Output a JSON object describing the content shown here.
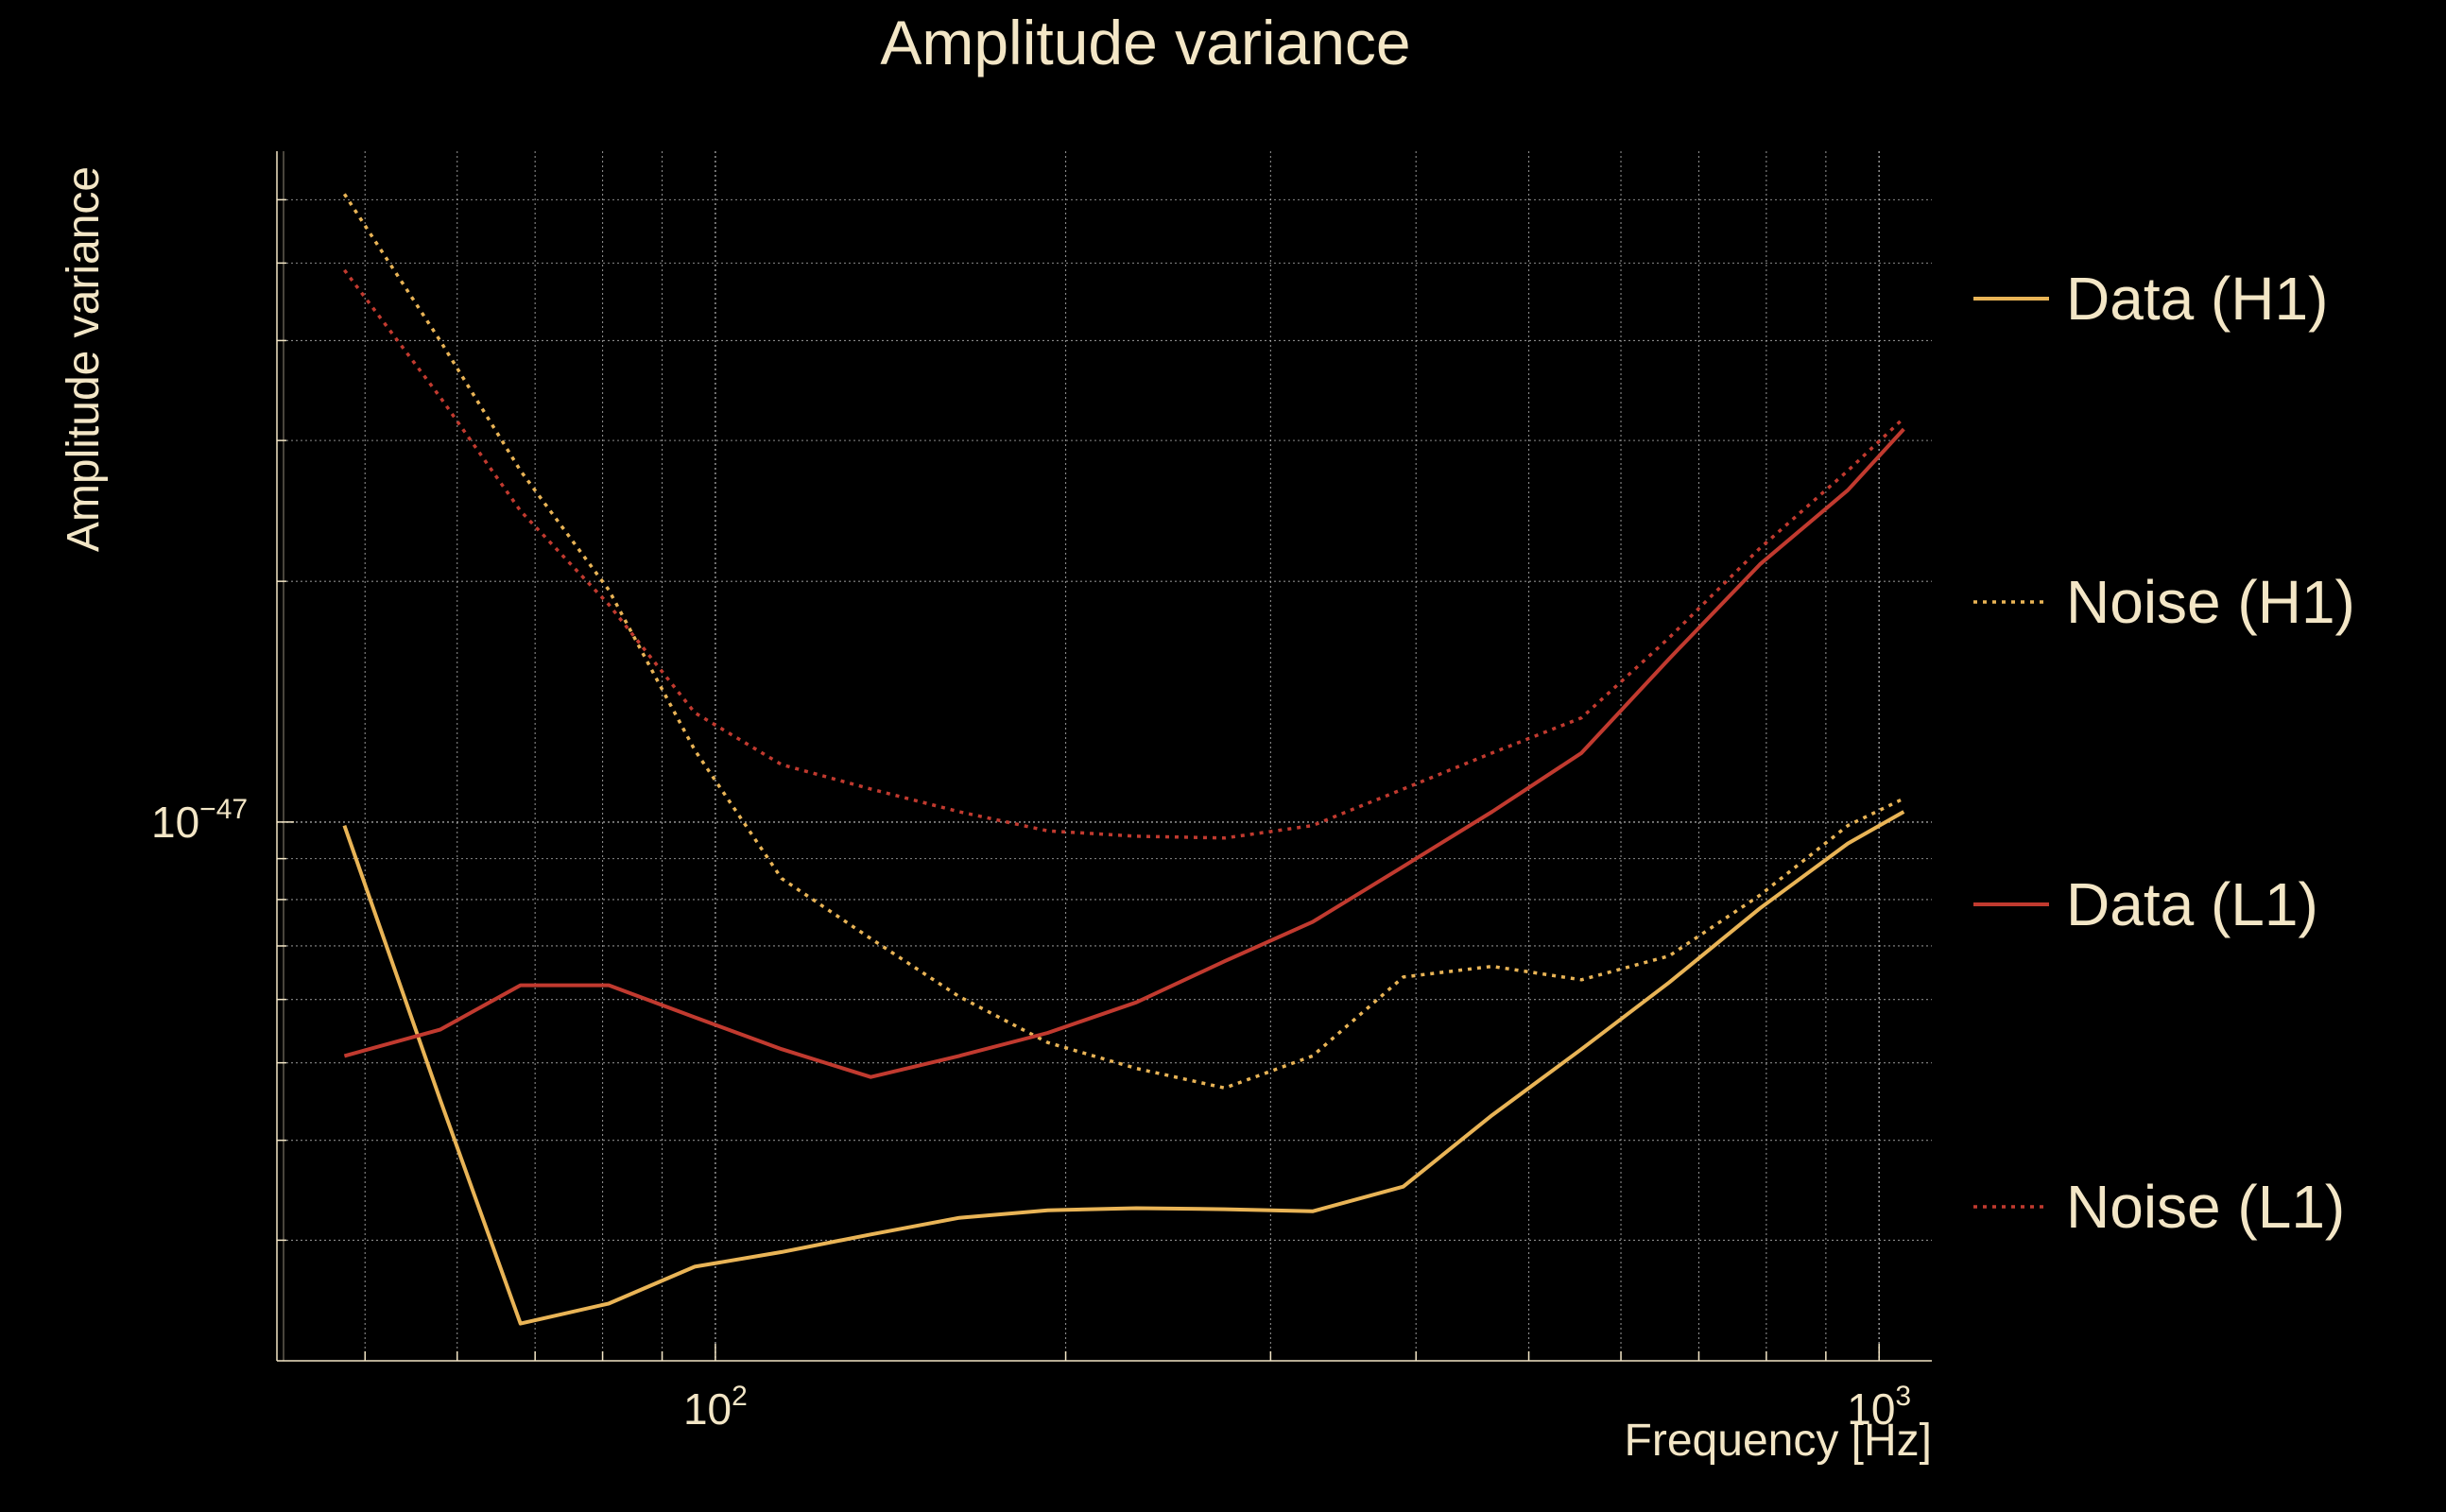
{
  "chart_data": {
    "type": "line",
    "title": "Amplitude variance",
    "xlabel": "Frequency [Hz]",
    "ylabel": "Amplitude variance",
    "xscale": "log",
    "yscale": "log",
    "xlim": [
      42,
      1110
    ],
    "ylim": [
      2.12e-48,
      6.9e-47
    ],
    "xticks": [
      {
        "value": 100,
        "base": "10",
        "exp": "2"
      },
      {
        "value": 1000,
        "base": "10",
        "exp": "3"
      }
    ],
    "yticks": [
      {
        "value": 1e-47,
        "base": "10",
        "exp": "−47"
      }
    ],
    "grid": true,
    "legend_position": "right",
    "background": "#000000",
    "text_color": "#f3e6c6",
    "grid_color": "#b8b8b8",
    "series": [
      {
        "name": "Data (H1)",
        "color": "#e9b456",
        "dash": "solid",
        "x": [
          48,
          58,
          68,
          81,
          96,
          114,
          136,
          162,
          193,
          230,
          274,
          326,
          390,
          465,
          555,
          660,
          790,
          940,
          1050
        ],
        "y": [
          9.9e-48,
          4.5e-48,
          2.36e-48,
          2.5e-48,
          2.78e-48,
          2.9e-48,
          3.05e-48,
          3.2e-48,
          3.27e-48,
          3.29e-48,
          3.28e-48,
          3.26e-48,
          3.5e-48,
          4.3e-48,
          5.2e-48,
          6.3e-48,
          7.8e-48,
          9.4e-48,
          1.03e-47
        ]
      },
      {
        "name": "Noise (H1)",
        "color": "#e9b456",
        "dash": "dotted",
        "x": [
          48,
          58,
          68,
          81,
          96,
          114,
          136,
          162,
          193,
          230,
          274,
          326,
          390,
          465,
          555,
          660,
          790,
          940,
          1050
        ],
        "y": [
          6.1e-47,
          4e-47,
          2.75e-47,
          1.95e-47,
          1.23e-47,
          8.5e-48,
          7.15e-48,
          6.05e-48,
          5.3e-48,
          4.92e-48,
          4.65e-48,
          5.1e-48,
          6.4e-48,
          6.6e-48,
          6.35e-48,
          6.8e-48,
          8.1e-48,
          9.9e-48,
          1.07e-47
        ]
      },
      {
        "name": "Data (L1)",
        "color": "#c13a2f",
        "dash": "solid",
        "x": [
          48,
          58,
          68,
          81,
          96,
          114,
          136,
          162,
          193,
          230,
          274,
          326,
          390,
          465,
          555,
          660,
          790,
          940,
          1050
        ],
        "y": [
          5.1e-48,
          5.5e-48,
          6.25e-48,
          6.25e-48,
          5.7e-48,
          5.2e-48,
          4.8e-48,
          5.1e-48,
          5.45e-48,
          5.95e-48,
          6.7e-48,
          7.5e-48,
          8.8e-48,
          1.03e-47,
          1.22e-47,
          1.6e-47,
          2.1e-47,
          2.6e-47,
          3.1e-47
        ]
      },
      {
        "name": "Noise (L1)",
        "color": "#c13a2f",
        "dash": "dotted",
        "x": [
          48,
          58,
          68,
          81,
          96,
          114,
          136,
          162,
          193,
          230,
          274,
          326,
          390,
          465,
          555,
          660,
          790,
          940,
          1050
        ],
        "y": [
          4.9e-47,
          3.4e-47,
          2.45e-47,
          1.87e-47,
          1.37e-47,
          1.18e-47,
          1.1e-47,
          1.03e-47,
          9.75e-48,
          9.6e-48,
          9.55e-48,
          9.9e-48,
          1.1e-47,
          1.22e-47,
          1.35e-47,
          1.7e-47,
          2.2e-47,
          2.75e-47,
          3.2e-47
        ]
      }
    ]
  }
}
